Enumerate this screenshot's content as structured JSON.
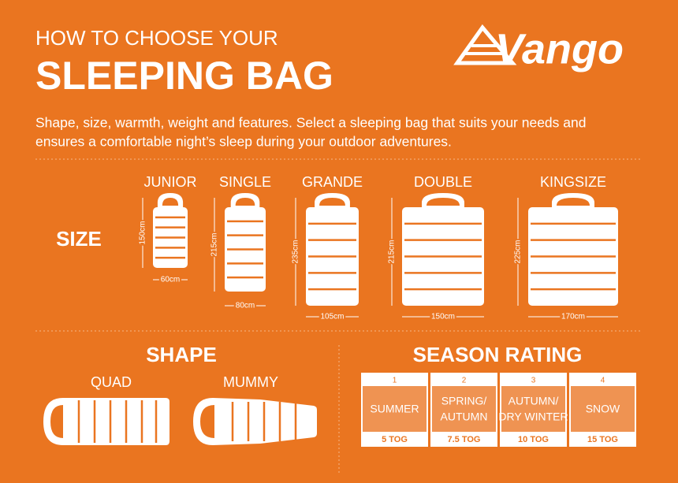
{
  "header": {
    "kicker": "HOW TO CHOOSE YOUR",
    "title": "SLEEPING BAG",
    "brand": "Vango",
    "intro": [
      "Shape, size, warmth, weight and features. Select a sleeping bag that suits your needs and",
      "ensures a comfortable night’s sleep during your outdoor adventures."
    ]
  },
  "size": {
    "label": "SIZE",
    "bags": [
      {
        "name": "JUNIOR",
        "length": "150cm",
        "width": "60cm"
      },
      {
        "name": "SINGLE",
        "length": "215cm",
        "width": "80cm"
      },
      {
        "name": "GRANDE",
        "length": "235cm",
        "width": "105cm"
      },
      {
        "name": "DOUBLE",
        "length": "215cm",
        "width": "150cm"
      },
      {
        "name": "KINGSIZE",
        "length": "225cm",
        "width": "170cm"
      }
    ]
  },
  "shape": {
    "title": "SHAPE",
    "items": [
      "QUAD",
      "MUMMY"
    ]
  },
  "season": {
    "title": "SEASON RATING",
    "ratings": [
      {
        "number": "1",
        "label": [
          "SUMMER"
        ],
        "tog": "5 TOG"
      },
      {
        "number": "2",
        "label": [
          "SPRING/",
          "AUTUMN"
        ],
        "tog": "7.5 TOG"
      },
      {
        "number": "3",
        "label": [
          "AUTUMN/",
          "DRY WINTER"
        ],
        "tog": "10 TOG"
      },
      {
        "number": "4",
        "label": [
          "SNOW"
        ],
        "tog": "15 TOG"
      }
    ]
  }
}
